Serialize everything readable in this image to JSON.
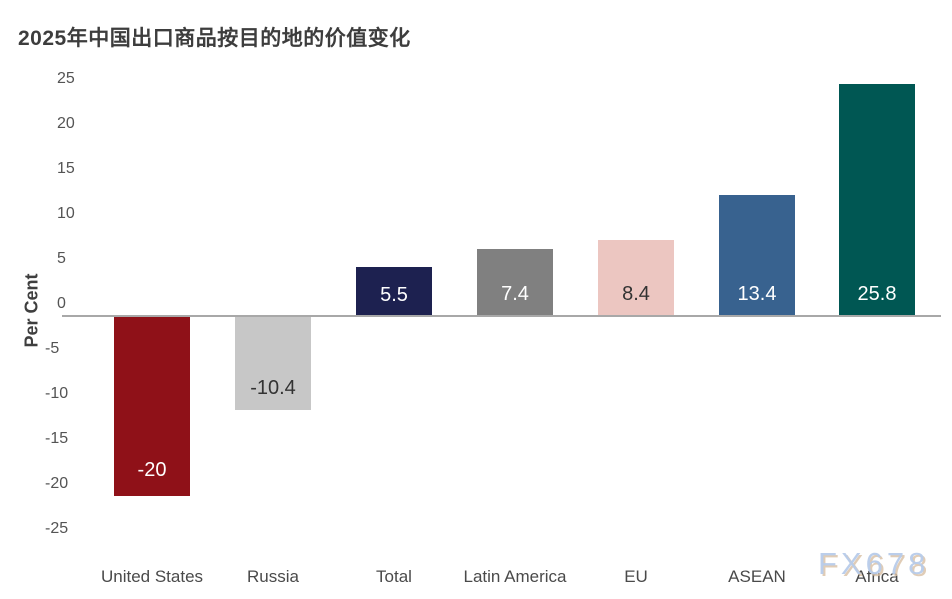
{
  "title": "2025年中国出口商品按目的地的价值变化",
  "watermark": "FX678",
  "chart_data": {
    "type": "bar",
    "title": "2025年中国出口商品按目的地的价值变化",
    "ylabel": "Per Cent",
    "xlabel": "",
    "categories": [
      "United States",
      "Russia",
      "Total",
      "Latin America",
      "EU",
      "ASEAN",
      "Africa"
    ],
    "values": [
      -20,
      -10.4,
      5.5,
      7.4,
      8.4,
      13.4,
      25.8
    ],
    "value_labels": [
      "-20",
      "-10.4",
      "5.5",
      "7.4",
      "8.4",
      "13.4",
      "25.8"
    ],
    "bar_colors": [
      "#8f1118",
      "#c7c7c7",
      "#1d2150",
      "#808080",
      "#ecc6c1",
      "#38628f",
      "#005753"
    ],
    "value_label_colors": [
      "#ffffff",
      "#333333",
      "#ffffff",
      "#ffffff",
      "#333333",
      "#ffffff",
      "#ffffff"
    ],
    "ylim": [
      -25,
      25
    ],
    "yticks": [
      25,
      20,
      15,
      10,
      5,
      0,
      -5,
      -10,
      -15,
      -20,
      -25
    ],
    "grid": false,
    "legend": false,
    "zero_line_color": "#a8a8a8"
  }
}
